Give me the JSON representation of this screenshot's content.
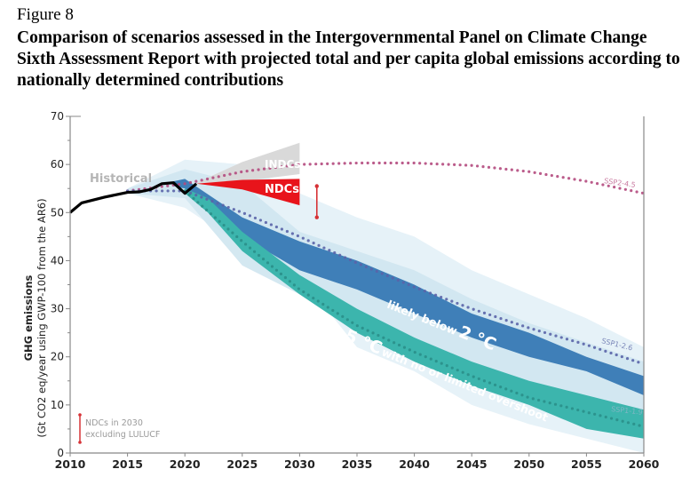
{
  "figure": {
    "label": "Figure 8",
    "title": "Comparison of scenarios assessed in the Intergovernmental Panel on Climate Change Sixth Assessment Report with projected total and per capita global emissions according to nationally determined contributions"
  },
  "chart_data": {
    "type": "area",
    "title": "Comparison of scenarios assessed in the Intergovernmental Panel on Climate Change Sixth Assessment Report with projected total and per capita global emissions according to nationally determined contributions",
    "xlabel": "",
    "ylabel_line1": "GHG emissions",
    "ylabel_line2": "(Gt CO2 eq/year using GWP-100 from the AR6)",
    "xlim": [
      2010,
      2060
    ],
    "ylim": [
      0,
      70
    ],
    "x_ticks": [
      "2010",
      "2015",
      "2020",
      "2025",
      "2030",
      "2035",
      "2040",
      "2045",
      "2050",
      "2055",
      "2060"
    ],
    "y_ticks": [
      "0",
      "10",
      "20",
      "30",
      "40",
      "50",
      "60",
      "70"
    ],
    "grid": false,
    "colors": {
      "historical": "#000000",
      "indcs": "#d9d9d9",
      "ndcs": "#e8141b",
      "below2c_band": "#3f7fb8",
      "c15_band": "#3cb5ad",
      "outer_light": "#e3f1f7",
      "mid_light": "#cfe5ef",
      "ssp245": "#b44a7e",
      "ssp126": "#5a64a8",
      "ssp119": "#2a8f89",
      "legend_bar": "#d63236"
    },
    "historical": {
      "label": "Historical",
      "x": [
        2010,
        2011,
        2013,
        2015,
        2016,
        2017,
        2018,
        2019,
        2020,
        2021
      ],
      "y": [
        50,
        52,
        53.2,
        54.2,
        54.3,
        54.8,
        56,
        56.2,
        54,
        56
      ]
    },
    "indcs": {
      "label": "INDCs",
      "x": [
        2021,
        2025,
        2030
      ],
      "lower": [
        56.2,
        56.5,
        58
      ],
      "upper": [
        56.2,
        60.5,
        64.5
      ]
    },
    "ndcs": {
      "label": "NDCs",
      "x": [
        2021,
        2025,
        2030
      ],
      "lower": [
        56,
        54.8,
        51.5
      ],
      "upper": [
        56,
        56.8,
        57
      ]
    },
    "ndc_excl_lulucf_2030": {
      "label": "NDCs in 2030 excluding LULUCF",
      "x": 2031.5,
      "low": 49,
      "high": 55.5
    },
    "bands": [
      {
        "name": "outer_envelope",
        "x": [
          2015,
          2020,
          2025,
          2030,
          2035,
          2040,
          2045,
          2050,
          2055,
          2060
        ],
        "lower": [
          54,
          51,
          43,
          37,
          22,
          17,
          10,
          6,
          3,
          0
        ],
        "upper": [
          55,
          61,
          60,
          54,
          49,
          45,
          38,
          33,
          28,
          22
        ]
      },
      {
        "name": "inner_envelope",
        "x": [
          2015,
          2020,
          2025,
          2030,
          2035,
          2040,
          2045,
          2050,
          2055,
          2060
        ],
        "lower": [
          54,
          53,
          39,
          33,
          28,
          19,
          14,
          11,
          8,
          6
        ],
        "upper": [
          55,
          59,
          56,
          46,
          42,
          38,
          32,
          27,
          23,
          19
        ]
      },
      {
        "name": "likely below 2 °C",
        "label": "likely below 2 °C",
        "x": [
          2019,
          2020,
          2025,
          2030,
          2035,
          2040,
          2045,
          2050,
          2055,
          2060
        ],
        "lower": [
          55.5,
          55,
          45,
          38,
          34,
          29,
          24,
          20,
          17,
          12
        ],
        "upper": [
          56.5,
          57,
          49,
          44,
          40,
          35,
          29,
          25,
          20,
          16
        ]
      },
      {
        "name": "1.5 °C with no or limited overshoot",
        "label": "1.5 °C with no or limited overshoot",
        "x": [
          2020,
          2022,
          2025,
          2030,
          2035,
          2040,
          2045,
          2050,
          2055,
          2060
        ],
        "lower": [
          54,
          50,
          42,
          33,
          25,
          19,
          14,
          10,
          5,
          3
        ],
        "upper": [
          55,
          53,
          46,
          37,
          30,
          24,
          19,
          15,
          12,
          9
        ]
      }
    ],
    "series": [
      {
        "name": "SSP2-4.5",
        "style": "dotted",
        "x": [
          2015,
          2020,
          2025,
          2030,
          2035,
          2040,
          2045,
          2050,
          2055,
          2060
        ],
        "y": [
          54.5,
          56,
          58.5,
          60,
          60.3,
          60.3,
          59.8,
          58.5,
          56.5,
          54
        ]
      },
      {
        "name": "SSP1-2.6",
        "style": "dotted",
        "x": [
          2015,
          2020,
          2025,
          2030,
          2035,
          2040,
          2045,
          2050,
          2055,
          2060
        ],
        "y": [
          54.5,
          54.5,
          50,
          45,
          39.5,
          34.5,
          30,
          26,
          22.5,
          18.5
        ]
      },
      {
        "name": "SSP1-1.9",
        "style": "dotted",
        "x": [
          2020,
          2025,
          2030,
          2035,
          2040,
          2045,
          2050,
          2055,
          2060
        ],
        "y": [
          54.5,
          44,
          34,
          26.5,
          21,
          16,
          11.5,
          8.5,
          5.5
        ]
      }
    ],
    "annotations": {
      "historical": "Historical",
      "indcs": "INDCs",
      "ndcs": "NDCs",
      "ssp245": "SSP2-4.5",
      "ssp126": "SSP1-2.6",
      "ssp119": "SSP1-1.9",
      "below2_main": "likely below",
      "below2_big": "2 °C",
      "c15_big": "1.5 °C",
      "c15_rest": "with no or limited overshoot",
      "legend_line1": "NDCs in 2030",
      "legend_line2": "excluding LULUCF"
    }
  }
}
